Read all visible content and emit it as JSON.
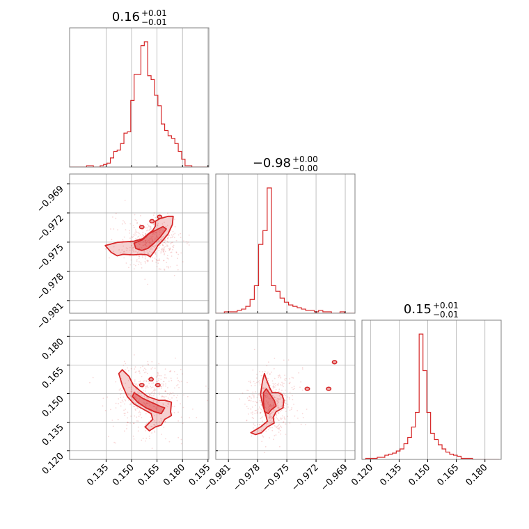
{
  "chart_data": {
    "type": "corner",
    "colors": {
      "line": "#d62728",
      "fill": "#d62728",
      "grid": "#b0b0b0",
      "frame": "#808080"
    },
    "grid": true,
    "params": [
      {
        "ticks": [
          "0.135",
          "0.150",
          "0.165",
          "0.180",
          "0.195"
        ],
        "tick_values": [
          0.135,
          0.15,
          0.165,
          0.18,
          0.195
        ],
        "range": [
          0.1135,
          0.1955
        ]
      },
      {
        "ticks": [
          "−0.981",
          "−0.978",
          "−0.975",
          "−0.972",
          "−0.969"
        ],
        "tick_values": [
          -0.981,
          -0.978,
          -0.975,
          -0.972,
          -0.969
        ],
        "range": [
          -0.9823,
          -0.968
        ]
      },
      {
        "ticks": [
          "0.120",
          "0.135",
          "0.150",
          "0.165",
          "0.180"
        ],
        "tick_values": [
          0.12,
          0.135,
          0.15,
          0.165,
          0.18
        ],
        "range": [
          0.1155,
          0.1885
        ]
      }
    ],
    "titles": [
      {
        "value": "0.16",
        "plus": "+0.01",
        "minus": "−0.01"
      },
      {
        "value": "−0.98",
        "plus": "+0.00",
        "minus": "−0.00"
      },
      {
        "value": "0.15",
        "plus": "+0.01",
        "minus": "−0.01"
      }
    ],
    "histograms": [
      {
        "param": 0,
        "bins": [
          0.1135,
          0.1155,
          0.1175,
          0.1195,
          0.1215,
          0.1235,
          0.1255,
          0.1275,
          0.1295,
          0.1315,
          0.1335,
          0.1355,
          0.1375,
          0.1395,
          0.1415,
          0.1435,
          0.1455,
          0.1475,
          0.1495,
          0.1515,
          0.1535,
          0.1555,
          0.1575,
          0.1595,
          0.1615,
          0.1635,
          0.1655,
          0.1675,
          0.1695,
          0.1715,
          0.1735,
          0.1755,
          0.1775,
          0.1795,
          0.1815,
          0.1835,
          0.1855,
          0.1875,
          0.1895,
          0.1915,
          0.1935,
          0.1955
        ],
        "counts": [
          0,
          0,
          0,
          0,
          0,
          1,
          1,
          0,
          0,
          1,
          2,
          3,
          7,
          12,
          13,
          18,
          26,
          27,
          51,
          71,
          71,
          93,
          96,
          70,
          67,
          55,
          47,
          33,
          28,
          24,
          22,
          18,
          12,
          6,
          1,
          1,
          0,
          0,
          0,
          0,
          0
        ]
      },
      {
        "param": 1,
        "bins": [
          -0.9823,
          -0.98186,
          -0.98142,
          -0.98098,
          -0.98054,
          -0.9801,
          -0.97966,
          -0.97922,
          -0.97878,
          -0.97834,
          -0.9779,
          -0.97746,
          -0.97702,
          -0.97658,
          -0.97614,
          -0.9757,
          -0.97526,
          -0.97482,
          -0.97438,
          -0.97394,
          -0.9735,
          -0.97306,
          -0.97262,
          -0.97218,
          -0.97174,
          -0.9713,
          -0.97086,
          -0.97042,
          -0.96998,
          -0.96954,
          -0.9691,
          -0.96866,
          -0.96822,
          -0.96778,
          -0.96734
        ],
        "counts": [
          0,
          0,
          1,
          1,
          1,
          2,
          3,
          5,
          10,
          20,
          50,
          60,
          91,
          20,
          16,
          11,
          8,
          6,
          5,
          4,
          3,
          2,
          2,
          1,
          2,
          1,
          1,
          0,
          0,
          1,
          0,
          0,
          0,
          0
        ]
      },
      {
        "param": 2,
        "bins": [
          0.1155,
          0.1175,
          0.1195,
          0.1215,
          0.1235,
          0.1255,
          0.1275,
          0.1295,
          0.1315,
          0.1335,
          0.1355,
          0.1375,
          0.1395,
          0.1415,
          0.1435,
          0.1455,
          0.1475,
          0.1495,
          0.1515,
          0.1535,
          0.1555,
          0.1575,
          0.1595,
          0.1615,
          0.1635,
          0.1655,
          0.1675,
          0.1695,
          0.1715,
          0.1735,
          0.1755,
          0.1775,
          0.1795,
          0.1815,
          0.1835,
          0.1855,
          0.1875
        ],
        "counts": [
          0,
          1,
          1,
          1,
          2,
          2,
          4,
          5,
          6,
          8,
          10,
          15,
          21,
          31,
          45,
          120,
          85,
          45,
          25,
          19,
          14,
          10,
          7,
          5,
          4,
          3,
          1,
          1,
          1,
          0,
          0,
          0,
          0,
          0,
          0,
          0
        ]
      }
    ],
    "pairs": [
      {
        "x_param": 0,
        "y_param": 1,
        "outer_contour": [
          [
            0.1345,
            -0.97535
          ],
          [
            0.1415,
            -0.97502
          ],
          [
            0.1515,
            -0.9749
          ],
          [
            0.1565,
            -0.97465
          ],
          [
            0.1595,
            -0.9742
          ],
          [
            0.1625,
            -0.9738
          ],
          [
            0.164,
            -0.97335
          ],
          [
            0.164,
            -0.97285
          ],
          [
            0.1665,
            -0.9726
          ],
          [
            0.1715,
            -0.97235
          ],
          [
            0.1745,
            -0.97235
          ],
          [
            0.174,
            -0.9732
          ],
          [
            0.1715,
            -0.97415
          ],
          [
            0.1685,
            -0.9748
          ],
          [
            0.1655,
            -0.97535
          ],
          [
            0.1635,
            -0.97595
          ],
          [
            0.161,
            -0.9765
          ],
          [
            0.159,
            -0.9763
          ],
          [
            0.1555,
            -0.97625
          ],
          [
            0.151,
            -0.9763
          ],
          [
            0.145,
            -0.97625
          ],
          [
            0.1415,
            -0.9764
          ],
          [
            0.138,
            -0.97605
          ]
        ],
        "inner_contour": [
          [
            0.1515,
            -0.9751
          ],
          [
            0.1565,
            -0.97475
          ],
          [
            0.1605,
            -0.9741
          ],
          [
            0.1645,
            -0.97375
          ],
          [
            0.1685,
            -0.9734
          ],
          [
            0.1705,
            -0.97365
          ],
          [
            0.167,
            -0.97445
          ],
          [
            0.163,
            -0.97515
          ],
          [
            0.1595,
            -0.97565
          ],
          [
            0.156,
            -0.97585
          ],
          [
            0.1525,
            -0.97565
          ]
        ],
        "islands": [
          [
            0.162,
            -0.97285
          ],
          [
            0.1665,
            -0.9724
          ],
          [
            0.156,
            -0.97345
          ]
        ],
        "scatter_center": [
          0.161,
          -0.9752
        ],
        "scatter_spread": [
          0.012,
          0.0016
        ]
      },
      {
        "x_param": 0,
        "y_param": 2,
        "outer_contour": [
          [
            0.1445,
            0.1625
          ],
          [
            0.1485,
            0.159
          ],
          [
            0.151,
            0.1545
          ],
          [
            0.155,
            0.1515
          ],
          [
            0.1595,
            0.1485
          ],
          [
            0.1625,
            0.1475
          ],
          [
            0.166,
            0.1465
          ],
          [
            0.1695,
            0.1465
          ],
          [
            0.1735,
            0.1455
          ],
          [
            0.173,
            0.1405
          ],
          [
            0.1735,
            0.1385
          ],
          [
            0.1695,
            0.1365
          ],
          [
            0.1675,
            0.1335
          ],
          [
            0.164,
            0.1325
          ],
          [
            0.1605,
            0.1305
          ],
          [
            0.158,
            0.1325
          ],
          [
            0.1625,
            0.1365
          ],
          [
            0.1615,
            0.1395
          ],
          [
            0.1555,
            0.1425
          ],
          [
            0.1515,
            0.1445
          ],
          [
            0.1475,
            0.1485
          ],
          [
            0.1445,
            0.1545
          ],
          [
            0.1425,
            0.1605
          ]
        ],
        "inner_contour": [
          [
            0.1515,
            0.1505
          ],
          [
            0.1565,
            0.1475
          ],
          [
            0.1615,
            0.1455
          ],
          [
            0.1665,
            0.1435
          ],
          [
            0.1695,
            0.1425
          ],
          [
            0.1675,
            0.1395
          ],
          [
            0.1635,
            0.1405
          ],
          [
            0.1585,
            0.1425
          ],
          [
            0.1535,
            0.1455
          ],
          [
            0.1505,
            0.1485
          ]
        ],
        "islands": [
          [
            0.1615,
            0.1575
          ],
          [
            0.1655,
            0.1545
          ],
          [
            0.156,
            0.1545
          ]
        ],
        "scatter_center": [
          0.16,
          0.147
        ],
        "scatter_spread": [
          0.013,
          0.012
        ]
      },
      {
        "x_param": 1,
        "y_param": 2,
        "outer_contour": [
          [
            -0.9787,
            0.1295
          ],
          [
            -0.9777,
            0.1325
          ],
          [
            -0.977,
            0.1355
          ],
          [
            -0.9772,
            0.1395
          ],
          [
            -0.9775,
            0.1445
          ],
          [
            -0.9777,
            0.1495
          ],
          [
            -0.9775,
            0.1565
          ],
          [
            -0.9773,
            0.1605
          ],
          [
            -0.9771,
            0.1575
          ],
          [
            -0.9768,
            0.1535
          ],
          [
            -0.9765,
            0.1505
          ],
          [
            -0.9759,
            0.1505
          ],
          [
            -0.9755,
            0.1495
          ],
          [
            -0.9753,
            0.1465
          ],
          [
            -0.9754,
            0.1425
          ],
          [
            -0.9761,
            0.1405
          ],
          [
            -0.9764,
            0.1375
          ],
          [
            -0.9763,
            0.1345
          ],
          [
            -0.977,
            0.1325
          ],
          [
            -0.9776,
            0.1295
          ],
          [
            -0.9782,
            0.1285
          ]
        ],
        "inner_contour": [
          [
            -0.9773,
            0.1405
          ],
          [
            -0.9774,
            0.1455
          ],
          [
            -0.9774,
            0.1505
          ],
          [
            -0.9771,
            0.1525
          ],
          [
            -0.9767,
            0.1495
          ],
          [
            -0.9763,
            0.1465
          ],
          [
            -0.9761,
            0.1435
          ],
          [
            -0.9766,
            0.1415
          ],
          [
            -0.9769,
            0.1395
          ]
        ],
        "islands": [
          [
            -0.9707,
            0.1525
          ],
          [
            -0.9729,
            0.1525
          ],
          [
            -0.9701,
            0.1665
          ]
        ],
        "scatter_center": [
          -0.9766,
          0.1455
        ],
        "scatter_spread": [
          0.0016,
          0.011
        ]
      }
    ]
  }
}
